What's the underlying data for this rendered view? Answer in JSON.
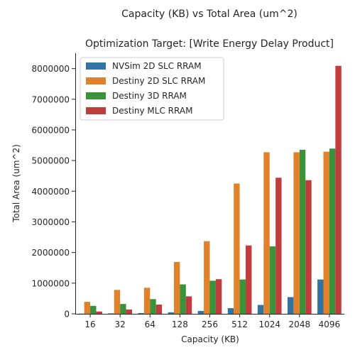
{
  "chart_data": {
    "type": "bar",
    "title": "Capacity (KB) vs Total Area (um^2)",
    "subtitle": "Optimization Target: [Write Energy Delay Product]",
    "xlabel": "Capacity (KB)",
    "ylabel": "Total Area (um^2)",
    "categories": [
      "16",
      "32",
      "64",
      "128",
      "256",
      "512",
      "1024",
      "2048",
      "4096"
    ],
    "ylim": [
      0,
      8500000
    ],
    "yticks": [
      "0",
      "1000000",
      "2000000",
      "3000000",
      "4000000",
      "5000000",
      "6000000",
      "7000000",
      "8000000"
    ],
    "grid": false,
    "legend_position": "top-left",
    "series": [
      {
        "name": "NVSim 2D SLC RRAM",
        "color": "#3274a1",
        "values": [
          8000,
          15000,
          25000,
          50000,
          95000,
          185000,
          290000,
          545000,
          1120000
        ]
      },
      {
        "name": "Destiny 2D SLC RRAM",
        "color": "#e1812c",
        "values": [
          390000,
          780000,
          850000,
          1690000,
          2370000,
          4250000,
          5270000,
          5270000,
          5290000
        ]
      },
      {
        "name": "Destiny 3D RRAM",
        "color": "#3a923a",
        "values": [
          260000,
          320000,
          480000,
          960000,
          1080000,
          1120000,
          2200000,
          5350000,
          5390000
        ]
      },
      {
        "name": "Destiny MLC RRAM",
        "color": "#c03d3e",
        "values": [
          75000,
          140000,
          300000,
          570000,
          1130000,
          2230000,
          4440000,
          4360000,
          8090000
        ]
      }
    ]
  }
}
